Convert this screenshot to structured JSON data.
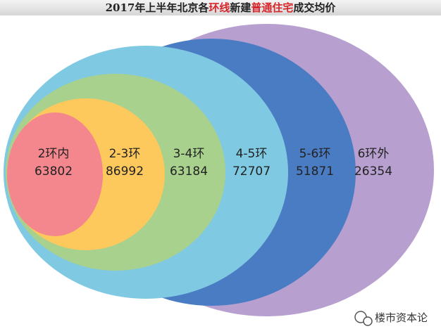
{
  "chart_data": {
    "type": "rings",
    "title": [
      "2017年上半年北京各",
      "环线",
      "新建",
      "普通住宅",
      "成交均价"
    ],
    "categories": [
      "2环内",
      "2-3环",
      "3-4环",
      "4-5环",
      "5-6环",
      "6环外"
    ],
    "values": [
      63802,
      86992,
      63184,
      72707,
      51871,
      26354
    ],
    "colors": [
      "#f4878d",
      "#fdc85c",
      "#a9d18e",
      "#7fc9e2",
      "#4a7cc3",
      "#b7a0d0"
    ]
  },
  "watermark": "楼市资本论"
}
